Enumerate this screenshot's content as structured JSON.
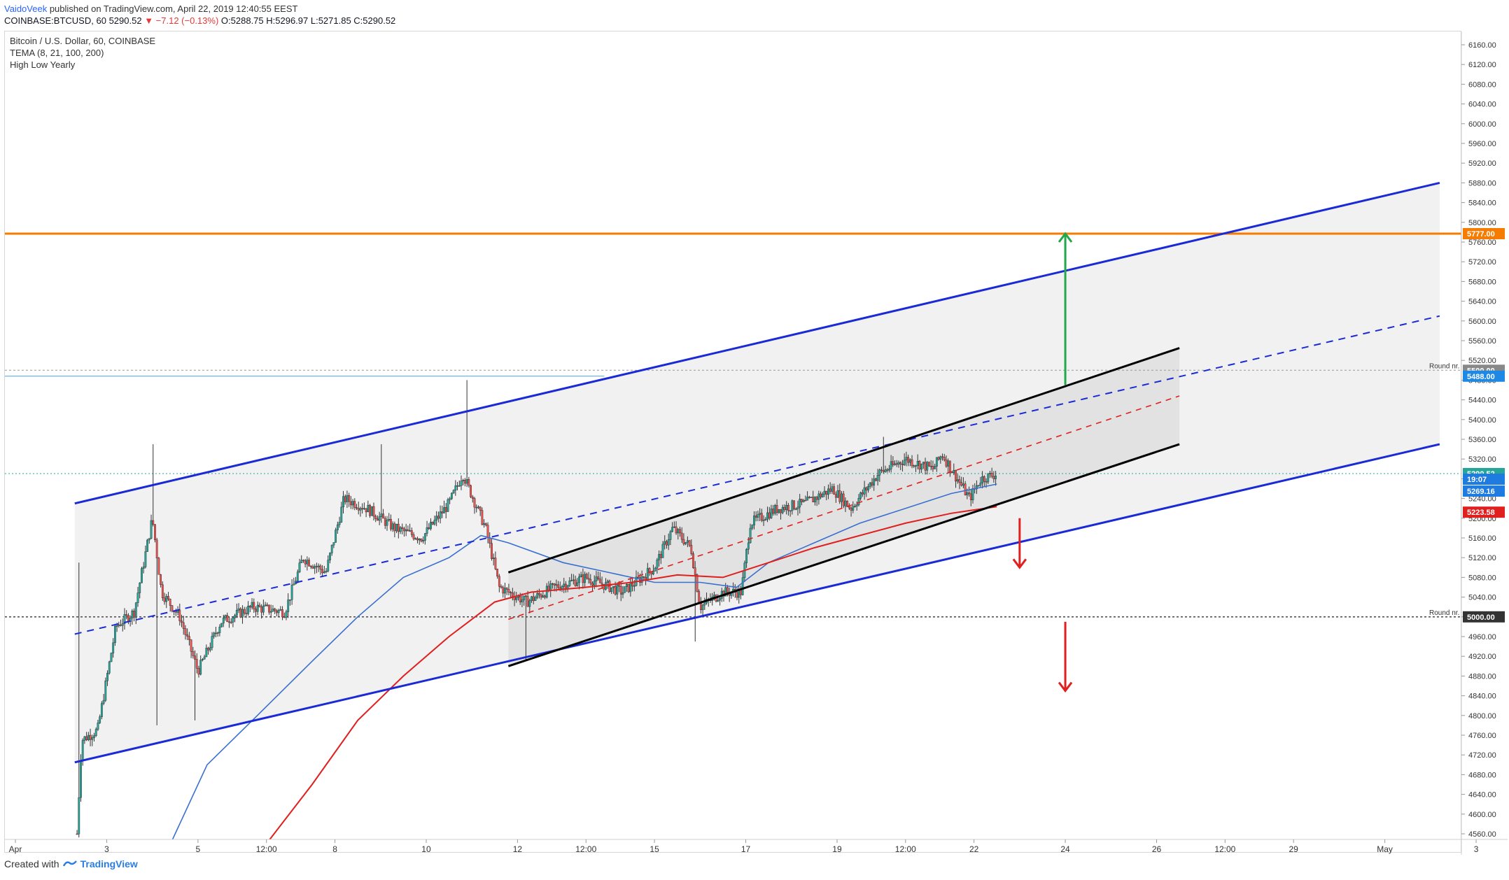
{
  "header": {
    "username": "VaidoVeek",
    "published": "published on TradingView.com, April 22, 2019 12:40:55 EEST",
    "symbol_line": "COINBASE:BTCUSD, 60",
    "last_price": "5290.52",
    "change": "▼ −7.12 (−0.13%)",
    "ohlc": "O:5288.75 H:5296.97 L:5271.85 C:5290.52"
  },
  "info": {
    "title": "Bitcoin / U.S. Dollar, 60, COINBASE",
    "indicator1": "TEMA (8, 21, 100, 200)",
    "indicator2": "High Low Yearly"
  },
  "footer": {
    "created": "Created with",
    "brand": "TradingView"
  },
  "colors": {
    "up": "#26a69a",
    "down": "#ef5350",
    "blue_channel": "#1a2bd6",
    "orange": "#f57c00",
    "tema_blue": "#3a6fd0",
    "tema_red": "#e01f1f",
    "green_arrow": "#22a84a",
    "red_arrow": "#e01f1f",
    "shade": "#ececec"
  },
  "chart_data": {
    "type": "candlestick",
    "symbol": "COINBASE:BTCUSD",
    "interval": "60",
    "ylim": [
      4540,
      6180
    ],
    "y_ticks": [
      4560,
      4600,
      4640,
      4680,
      4720,
      4760,
      4800,
      4840,
      4880,
      4920,
      4960,
      5000,
      5040,
      5080,
      5120,
      5160,
      5200,
      5240,
      5280,
      5320,
      5360,
      5400,
      5440,
      5480,
      5520,
      5560,
      5600,
      5640,
      5680,
      5720,
      5760,
      5800,
      5840,
      5880,
      5920,
      5960,
      6000,
      6040,
      6080,
      6120,
      6160
    ],
    "x_ticks": [
      {
        "label": "Apr",
        "day": 1
      },
      {
        "label": "3",
        "day": 3
      },
      {
        "label": "5",
        "day": 5
      },
      {
        "label": "12:00",
        "day": 6.5
      },
      {
        "label": "8",
        "day": 8
      },
      {
        "label": "10",
        "day": 10
      },
      {
        "label": "12",
        "day": 12
      },
      {
        "label": "12:00",
        "day": 13.5
      },
      {
        "label": "15",
        "day": 15
      },
      {
        "label": "17",
        "day": 17
      },
      {
        "label": "19",
        "day": 19
      },
      {
        "label": "12:00",
        "day": 20.5
      },
      {
        "label": "22",
        "day": 22
      },
      {
        "label": "24",
        "day": 24
      },
      {
        "label": "26",
        "day": 26
      },
      {
        "label": "12:00",
        "day": 27.5
      },
      {
        "label": "29",
        "day": 29
      },
      {
        "label": "May",
        "day": 31
      },
      {
        "label": "3",
        "day": 33
      }
    ],
    "price_key_points": [
      {
        "day": 2.35,
        "price": 4560
      },
      {
        "day": 2.45,
        "price": 4750
      },
      {
        "day": 2.8,
        "price": 4770
      },
      {
        "day": 3.2,
        "price": 4980
      },
      {
        "day": 3.6,
        "price": 5010
      },
      {
        "day": 4.0,
        "price": 5200
      },
      {
        "day": 4.2,
        "price": 5050
      },
      {
        "day": 4.6,
        "price": 5000
      },
      {
        "day": 5.0,
        "price": 4890
      },
      {
        "day": 5.5,
        "price": 4990
      },
      {
        "day": 6.2,
        "price": 5020
      },
      {
        "day": 6.9,
        "price": 5010
      },
      {
        "day": 7.3,
        "price": 5120
      },
      {
        "day": 7.8,
        "price": 5090
      },
      {
        "day": 8.2,
        "price": 5240
      },
      {
        "day": 8.7,
        "price": 5220
      },
      {
        "day": 9.3,
        "price": 5180
      },
      {
        "day": 9.9,
        "price": 5160
      },
      {
        "day": 10.5,
        "price": 5230
      },
      {
        "day": 10.8,
        "price": 5290
      },
      {
        "day": 11.3,
        "price": 5180
      },
      {
        "day": 11.6,
        "price": 5060
      },
      {
        "day": 12.2,
        "price": 5030
      },
      {
        "day": 12.8,
        "price": 5060
      },
      {
        "day": 13.5,
        "price": 5080
      },
      {
        "day": 14.3,
        "price": 5050
      },
      {
        "day": 15.0,
        "price": 5100
      },
      {
        "day": 15.4,
        "price": 5180
      },
      {
        "day": 15.8,
        "price": 5140
      },
      {
        "day": 16.0,
        "price": 5020
      },
      {
        "day": 16.5,
        "price": 5050
      },
      {
        "day": 16.9,
        "price": 5050
      },
      {
        "day": 17.1,
        "price": 5190
      },
      {
        "day": 17.7,
        "price": 5220
      },
      {
        "day": 18.3,
        "price": 5230
      },
      {
        "day": 18.9,
        "price": 5260
      },
      {
        "day": 19.3,
        "price": 5220
      },
      {
        "day": 19.9,
        "price": 5290
      },
      {
        "day": 20.5,
        "price": 5320
      },
      {
        "day": 21.1,
        "price": 5300
      },
      {
        "day": 21.3,
        "price": 5330
      },
      {
        "day": 21.7,
        "price": 5270
      },
      {
        "day": 21.9,
        "price": 5240
      },
      {
        "day": 22.15,
        "price": 5280
      },
      {
        "day": 22.5,
        "price": 5290
      }
    ],
    "wick_extremes": [
      {
        "day": 2.32,
        "price": 4540
      },
      {
        "day": 2.38,
        "price": 5110
      },
      {
        "day": 4.0,
        "price": 5350
      },
      {
        "day": 4.1,
        "price": 4780
      },
      {
        "day": 4.95,
        "price": 4790
      },
      {
        "day": 9.0,
        "price": 5350
      },
      {
        "day": 10.9,
        "price": 5480
      },
      {
        "day": 12.2,
        "price": 4910
      },
      {
        "day": 15.9,
        "price": 4950
      },
      {
        "day": 20.0,
        "price": 5365
      }
    ],
    "tema_blue": [
      {
        "day": 4.4,
        "price": 4540
      },
      {
        "day": 5.2,
        "price": 4700
      },
      {
        "day": 6.3,
        "price": 4800
      },
      {
        "day": 7.5,
        "price": 4910
      },
      {
        "day": 8.5,
        "price": 5000
      },
      {
        "day": 9.5,
        "price": 5080
      },
      {
        "day": 10.5,
        "price": 5120
      },
      {
        "day": 11.2,
        "price": 5165
      },
      {
        "day": 11.8,
        "price": 5150
      },
      {
        "day": 13.0,
        "price": 5110
      },
      {
        "day": 14.0,
        "price": 5090
      },
      {
        "day": 15.0,
        "price": 5070
      },
      {
        "day": 16.0,
        "price": 5070
      },
      {
        "day": 16.8,
        "price": 5060
      },
      {
        "day": 17.5,
        "price": 5110
      },
      {
        "day": 18.5,
        "price": 5150
      },
      {
        "day": 19.5,
        "price": 5190
      },
      {
        "day": 20.5,
        "price": 5220
      },
      {
        "day": 21.5,
        "price": 5250
      },
      {
        "day": 22.5,
        "price": 5269.16
      }
    ],
    "tema_red": [
      {
        "day": 6.5,
        "price": 4540
      },
      {
        "day": 7.5,
        "price": 4660
      },
      {
        "day": 8.5,
        "price": 4790
      },
      {
        "day": 9.5,
        "price": 4880
      },
      {
        "day": 10.5,
        "price": 4960
      },
      {
        "day": 11.5,
        "price": 5030
      },
      {
        "day": 12.3,
        "price": 5050
      },
      {
        "day": 13.5,
        "price": 5060
      },
      {
        "day": 14.5,
        "price": 5070
      },
      {
        "day": 15.5,
        "price": 5085
      },
      {
        "day": 16.5,
        "price": 5080
      },
      {
        "day": 17.5,
        "price": 5110
      },
      {
        "day": 18.5,
        "price": 5140
      },
      {
        "day": 19.5,
        "price": 5165
      },
      {
        "day": 20.5,
        "price": 5190
      },
      {
        "day": 21.5,
        "price": 5210
      },
      {
        "day": 22.5,
        "price": 5223.58
      }
    ],
    "big_channel": {
      "upper": [
        {
          "day": 2.3,
          "price": 5230
        },
        {
          "day": 32.2,
          "price": 5880
        }
      ],
      "lower": [
        {
          "day": 2.3,
          "price": 4705
        },
        {
          "day": 32.2,
          "price": 5350
        }
      ],
      "mid": [
        {
          "day": 2.3,
          "price": 4965
        },
        {
          "day": 32.2,
          "price": 5610
        }
      ]
    },
    "small_channel": {
      "upper": [
        {
          "day": 11.8,
          "price": 5090
        },
        {
          "day": 26.5,
          "price": 5545
        }
      ],
      "lower": [
        {
          "day": 11.8,
          "price": 4900
        },
        {
          "day": 26.5,
          "price": 5350
        }
      ],
      "mid": [
        {
          "day": 11.8,
          "price": 4995
        },
        {
          "day": 26.5,
          "price": 5448
        }
      ]
    },
    "horizontal_levels": [
      {
        "price": 5777.0,
        "label": "5777.00",
        "kind": "resistance"
      },
      {
        "price": 5500.0,
        "label": "5500.00",
        "kind": "round"
      },
      {
        "price": 5488.0,
        "label": "5488.00",
        "kind": "yearly_high"
      },
      {
        "price": 5290.52,
        "label": "5290.52",
        "kind": "last"
      },
      {
        "price": 5000.0,
        "label": "5000.00",
        "kind": "round"
      }
    ],
    "round_nr_label": "Round nr.",
    "price_badges": [
      {
        "price": 5290.52,
        "label": "5290.52",
        "color": "#26a69a"
      },
      {
        "price": 5269.16,
        "label": "5269.16",
        "color": "#1e7be0",
        "extra": "19:07"
      },
      {
        "price": 5223.58,
        "label": "5223.58",
        "color": "#e01f1f"
      }
    ],
    "arrows": [
      {
        "day": 24.0,
        "from": 5470,
        "to": 5777,
        "color": "green"
      },
      {
        "day": 23.0,
        "from": 5200,
        "to": 5100,
        "color": "red"
      },
      {
        "day": 24.0,
        "from": 4990,
        "to": 4850,
        "color": "red"
      }
    ]
  }
}
